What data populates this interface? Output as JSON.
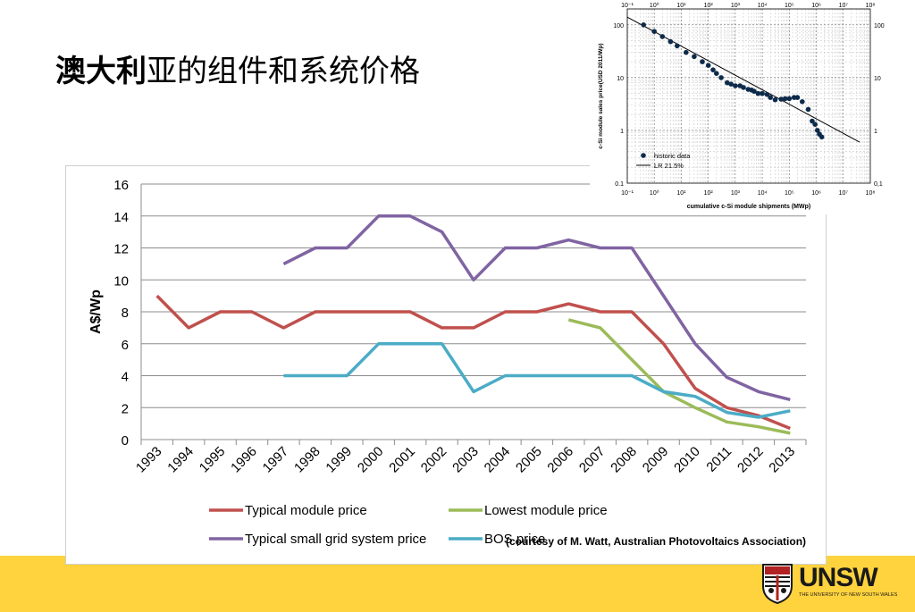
{
  "slide": {
    "title_bold": "澳大利",
    "title_rest": "亚的组件和系统价格",
    "courtesy": "(courtesy of M. Watt, Australian Photovoltaics Association)",
    "band_color": "#FFD33E"
  },
  "logo": {
    "name": "UNSW",
    "subtitle": "THE UNIVERSITY OF NEW SOUTH WALES"
  },
  "chart_data": [
    {
      "type": "line",
      "ylabel": "A$/Wp",
      "xlabel": "",
      "ylim": [
        0,
        16
      ],
      "yticks": [
        0,
        2,
        4,
        6,
        8,
        10,
        12,
        14,
        16
      ],
      "grid": true,
      "legend_position": "bottom",
      "categories": [
        "1993",
        "1994",
        "1995",
        "1996",
        "1997",
        "1998",
        "1999",
        "2000",
        "2001",
        "2002",
        "2003",
        "2004",
        "2005",
        "2006",
        "2007",
        "2008",
        "2009",
        "2010",
        "2011",
        "2012",
        "2013"
      ],
      "series": [
        {
          "name": "Typical module price",
          "color": "#C0504D",
          "values": [
            9,
            7,
            8,
            8,
            7,
            8,
            8,
            8,
            8,
            7,
            7,
            8,
            8,
            8.5,
            8,
            8,
            6,
            3.2,
            2,
            1.5,
            0.7
          ]
        },
        {
          "name": "Lowest module price",
          "color": "#9BBB59",
          "values": [
            null,
            null,
            null,
            null,
            null,
            null,
            null,
            null,
            null,
            null,
            null,
            null,
            null,
            7.5,
            7,
            5,
            3,
            2,
            1.1,
            0.8,
            0.4
          ]
        },
        {
          "name": "Typical small grid system price",
          "color": "#8064A2",
          "values": [
            null,
            null,
            null,
            null,
            11,
            12,
            12,
            14,
            14,
            13,
            10,
            12,
            12,
            12.5,
            12,
            12,
            9,
            6,
            3.9,
            3,
            2.5
          ]
        },
        {
          "name": "BOS price",
          "color": "#4BACC6",
          "values": [
            null,
            null,
            null,
            null,
            4,
            4,
            4,
            6,
            6,
            6,
            3,
            4,
            4,
            4,
            4,
            4,
            3,
            2.7,
            1.7,
            1.4,
            1.8
          ]
        }
      ]
    },
    {
      "type": "scatter",
      "xlabel": "cumulative c-Si module shipments (MWp)",
      "ylabel": "c-Si module sales price(USD 2011/Wp)",
      "x_scale": "log",
      "y_scale": "log",
      "xlim": [
        0.1,
        100000000
      ],
      "ylim": [
        0.1,
        200
      ],
      "xtick_labels": [
        "10⁻¹",
        "10⁰",
        "10¹",
        "10²",
        "10³",
        "10⁴",
        "10⁵",
        "10⁶",
        "10⁷",
        "10⁸"
      ],
      "ytick_labels_left": [
        "0.1",
        "1",
        "10",
        "100"
      ],
      "ytick_labels_right": [
        "0,1",
        "1",
        "10",
        "100"
      ],
      "top_tick_labels": [
        "10⁻¹",
        "10⁰",
        "10¹",
        "10²",
        "10³",
        "10⁴",
        "10⁵",
        "10⁶",
        "10⁷",
        "10⁸"
      ],
      "grid": true,
      "legend_position": "bottom-left",
      "series": [
        {
          "name": "historic data",
          "color": "#0d2a4a",
          "points": [
            [
              0.4,
              100
            ],
            [
              1,
              75
            ],
            [
              2,
              60
            ],
            [
              4,
              48
            ],
            [
              7,
              40
            ],
            [
              15,
              30
            ],
            [
              30,
              25
            ],
            [
              60,
              20
            ],
            [
              100,
              17
            ],
            [
              150,
              14
            ],
            [
              200,
              12
            ],
            [
              300,
              10
            ],
            [
              500,
              8
            ],
            [
              700,
              7.5
            ],
            [
              1000,
              7
            ],
            [
              1500,
              7
            ],
            [
              2000,
              6.5
            ],
            [
              3000,
              6
            ],
            [
              4000,
              5.8
            ],
            [
              5000,
              5.5
            ],
            [
              7000,
              5
            ],
            [
              10000,
              5
            ],
            [
              15000,
              4.8
            ],
            [
              20000,
              4.2
            ],
            [
              30000,
              3.8
            ],
            [
              50000,
              3.9
            ],
            [
              70000,
              4
            ],
            [
              100000,
              4
            ],
            [
              150000,
              4.2
            ],
            [
              200000,
              4.2
            ],
            [
              300000,
              3.5
            ],
            [
              500000,
              2.5
            ],
            [
              700000,
              1.5
            ],
            [
              900000,
              1.3
            ],
            [
              1100000,
              1.0
            ],
            [
              1300000,
              0.85
            ],
            [
              1600000,
              0.75
            ]
          ]
        },
        {
          "name": "LR 21.5%",
          "color": "#000000",
          "line": [
            [
              0.1,
              140
            ],
            [
              40000000,
              0.6
            ]
          ]
        }
      ]
    }
  ]
}
